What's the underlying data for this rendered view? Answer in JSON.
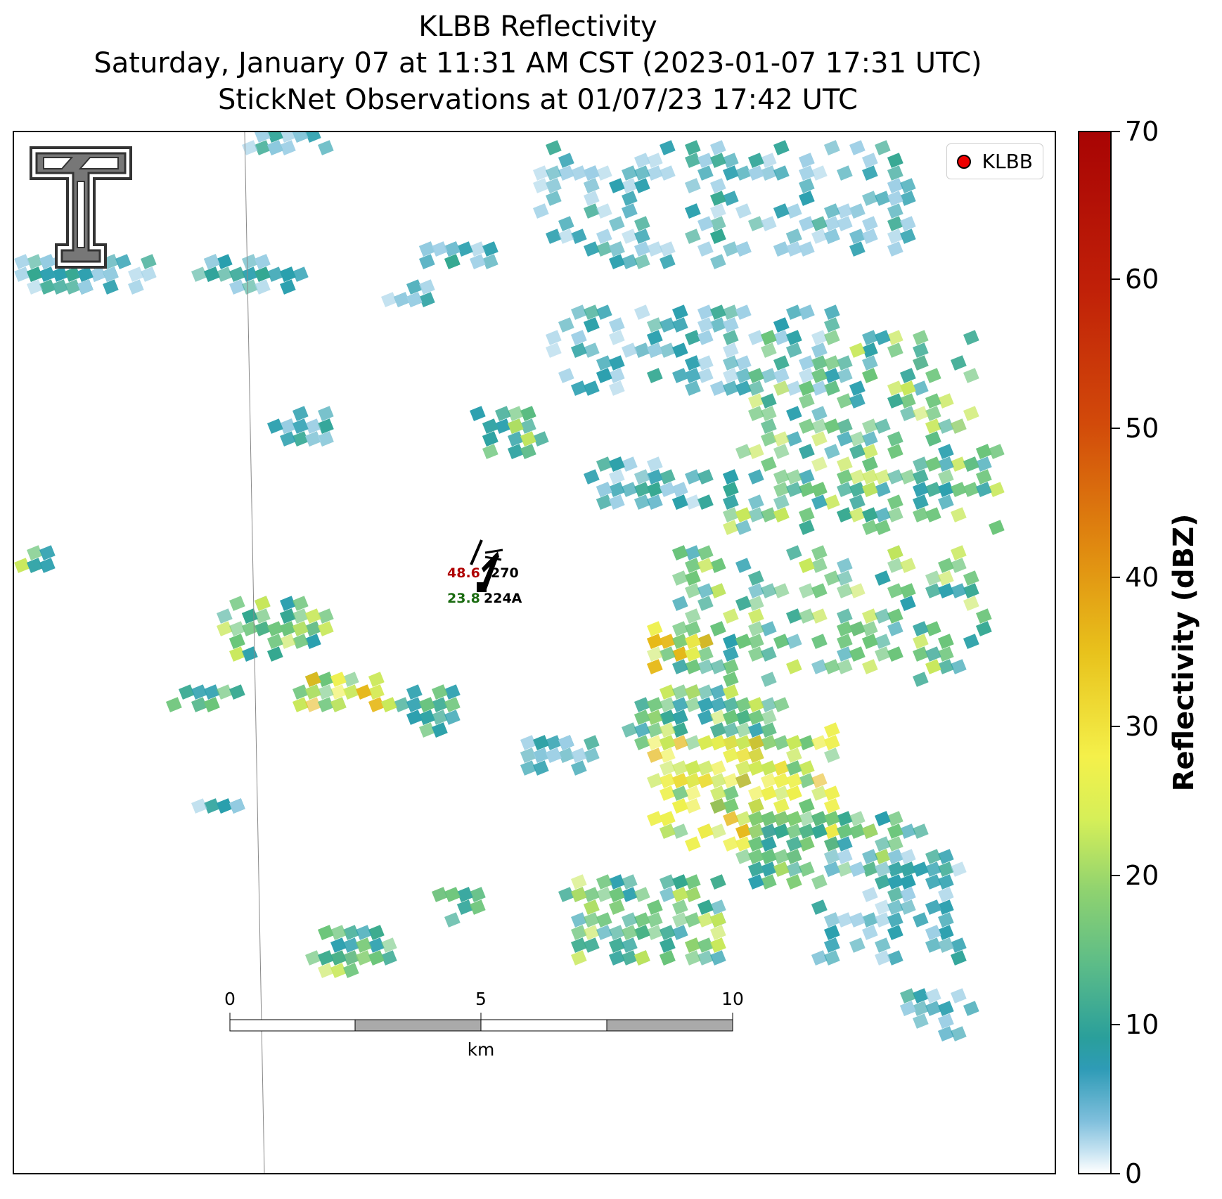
{
  "title": {
    "line1": "KLBB Reflectivity",
    "line2": "Saturday, January 07 at 11:31 AM CST (2023-01-07 17:31 UTC)",
    "line3": "StickNet Observations at 01/07/23 17:42 UTC"
  },
  "legend": {
    "label": "KLBB",
    "marker_color": "#ee0000"
  },
  "station": {
    "id": "224A",
    "temperature": "48.6",
    "dewpoint": "23.8",
    "wind_direction_label": "270"
  },
  "scalebar": {
    "unit": "km",
    "ticks": [
      "0",
      "5",
      "10"
    ]
  },
  "colorbar": {
    "label": "Reflectivity (dBZ)",
    "min": 0,
    "max": 70,
    "ticks": [
      "0",
      "10",
      "20",
      "30",
      "40",
      "50",
      "60",
      "70"
    ]
  },
  "colors": {
    "light_blue": "#9fd0e6",
    "teal": "#2a9fae",
    "green_teal": "#35a890",
    "green": "#6cc57a",
    "yellow_green": "#c8e85a",
    "yellow": "#eef04e",
    "orange_yellow": "#e6b818"
  }
}
